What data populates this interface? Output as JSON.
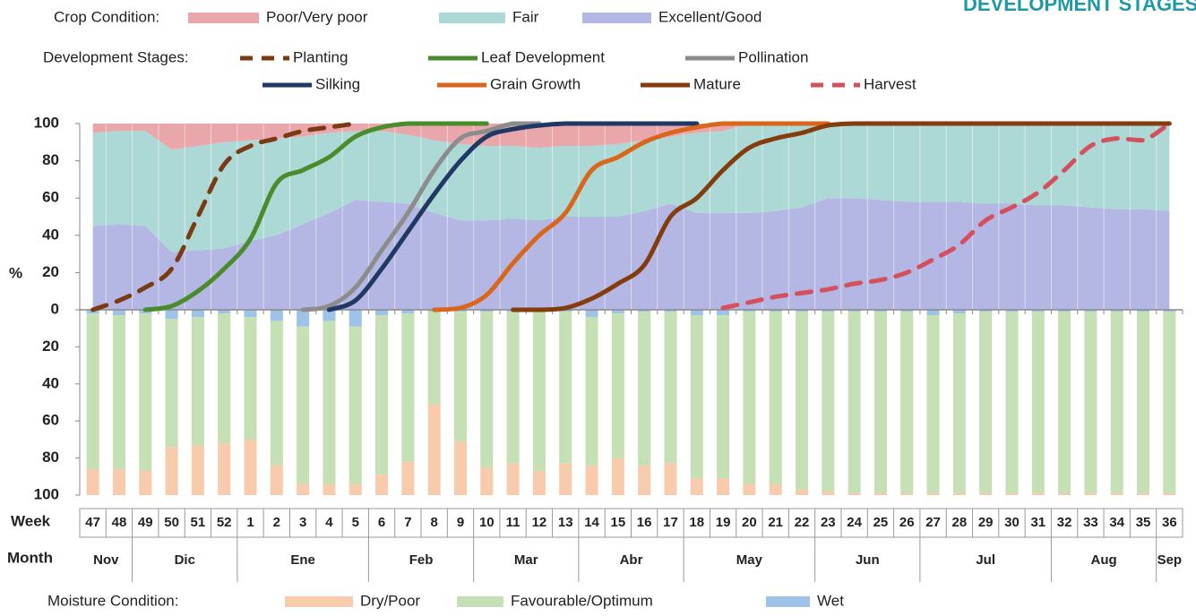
{
  "chart_data": {
    "type": "combo",
    "title": "DEVELOPMENT STAGES",
    "crop_legend_title": "Crop Condition:",
    "stage_legend_title": "Development Stages:",
    "moisture_legend_title": "Moisture Condition:",
    "y_label": "%",
    "week_label": "Week",
    "month_label": "Month",
    "categories": [
      "47",
      "48",
      "49",
      "50",
      "51",
      "52",
      "1",
      "2",
      "3",
      "4",
      "5",
      "6",
      "7",
      "8",
      "9",
      "10",
      "11",
      "12",
      "13",
      "14",
      "15",
      "16",
      "17",
      "18",
      "19",
      "20",
      "21",
      "22",
      "23",
      "24",
      "25",
      "26",
      "27",
      "28",
      "29",
      "30",
      "31",
      "32",
      "33",
      "34",
      "35",
      "36"
    ],
    "months": [
      {
        "name": "Nov",
        "span": 2
      },
      {
        "name": "Dic",
        "span": 4
      },
      {
        "name": "Ene",
        "span": 5
      },
      {
        "name": "Feb",
        "span": 4
      },
      {
        "name": "Mar",
        "span": 4
      },
      {
        "name": "Abr",
        "span": 4
      },
      {
        "name": "May",
        "span": 5
      },
      {
        "name": "Jun",
        "span": 4
      },
      {
        "name": "Jul",
        "span": 5
      },
      {
        "name": "Aug",
        "span": 4
      },
      {
        "name": "Sep",
        "span": 1
      }
    ],
    "ylim": [
      0,
      100
    ],
    "yticks": [
      0,
      20,
      40,
      60,
      80,
      100
    ],
    "moisture_ylim": [
      0,
      100
    ],
    "moisture_yticks": [
      0,
      20,
      40,
      60,
      80,
      100
    ],
    "crop_series": [
      {
        "name": "Excellent/Good",
        "color": "#b4b7e3",
        "values": [
          45,
          46,
          45,
          31,
          32,
          33,
          37,
          40,
          46,
          52,
          59,
          58,
          57,
          52,
          48,
          48,
          49,
          48,
          50,
          50,
          50,
          53,
          57,
          52,
          52,
          52,
          53,
          55,
          60,
          60,
          59,
          58,
          58,
          58,
          57,
          57,
          56,
          56,
          55,
          54,
          54,
          53
        ]
      },
      {
        "name": "Fair",
        "color": "#acd9d6",
        "values": [
          50,
          50,
          51,
          55,
          56,
          57,
          54,
          52,
          47,
          43,
          37,
          38,
          37,
          39,
          41,
          40,
          39,
          39,
          38,
          38,
          39,
          38,
          36,
          43,
          44,
          48,
          47,
          45,
          40,
          40,
          41,
          42,
          42,
          42,
          43,
          43,
          44,
          44,
          45,
          46,
          46,
          47
        ]
      },
      {
        "name": "Poor/Very poor",
        "color": "#e9a7ab",
        "values": [
          5,
          4,
          4,
          14,
          12,
          10,
          9,
          8,
          7,
          5,
          4,
          4,
          6,
          9,
          11,
          12,
          12,
          13,
          12,
          12,
          11,
          9,
          7,
          5,
          4,
          0,
          0,
          0,
          0,
          0,
          0,
          0,
          0,
          0,
          0,
          0,
          0,
          0,
          0,
          0,
          0,
          0
        ]
      }
    ],
    "stage_series": [
      {
        "name": "Planting",
        "color": "#7b3a12",
        "dashed": true,
        "values": [
          0,
          5,
          12,
          22,
          50,
          78,
          88,
          92,
          96,
          98,
          100,
          null,
          null,
          null,
          null,
          null,
          null,
          null,
          null,
          null,
          null,
          null,
          null,
          null,
          null,
          null,
          null,
          null,
          null,
          null,
          null,
          null,
          null,
          null,
          null,
          null,
          null,
          null,
          null,
          null,
          null,
          null
        ]
      },
      {
        "name": "Leaf Development",
        "color": "#4a8b2c",
        "values": [
          null,
          null,
          0,
          2,
          10,
          22,
          38,
          68,
          75,
          82,
          93,
          98,
          100,
          100,
          100,
          100,
          null,
          null,
          null,
          null,
          null,
          null,
          null,
          null,
          null,
          null,
          null,
          null,
          null,
          null,
          null,
          null,
          null,
          null,
          null,
          null,
          null,
          null,
          null,
          null,
          null,
          null
        ]
      },
      {
        "name": "Pollination",
        "color": "#8c8c8c",
        "values": [
          null,
          null,
          null,
          null,
          null,
          null,
          null,
          null,
          0,
          2,
          12,
          32,
          52,
          75,
          92,
          96,
          100,
          100,
          null,
          null,
          null,
          null,
          null,
          null,
          null,
          null,
          null,
          null,
          null,
          null,
          null,
          null,
          null,
          null,
          null,
          null,
          null,
          null,
          null,
          null,
          null,
          null
        ]
      },
      {
        "name": "Silking",
        "color": "#1f3864",
        "values": [
          null,
          null,
          null,
          null,
          null,
          null,
          null,
          null,
          null,
          0,
          5,
          22,
          42,
          62,
          80,
          93,
          97,
          99,
          100,
          100,
          100,
          100,
          100,
          100,
          null,
          null,
          null,
          null,
          null,
          null,
          null,
          null,
          null,
          null,
          null,
          null,
          null,
          null,
          null,
          null,
          null,
          null
        ]
      },
      {
        "name": "Grain Growth",
        "color": "#d9661b",
        "values": [
          null,
          null,
          null,
          null,
          null,
          null,
          null,
          null,
          null,
          null,
          null,
          null,
          null,
          0,
          1,
          8,
          25,
          40,
          52,
          75,
          82,
          90,
          95,
          98,
          100,
          100,
          100,
          100,
          100,
          null,
          null,
          null,
          null,
          null,
          null,
          null,
          null,
          null,
          null,
          null,
          null,
          null
        ]
      },
      {
        "name": "Mature",
        "color": "#843c0c",
        "values": [
          null,
          null,
          null,
          null,
          null,
          null,
          null,
          null,
          null,
          null,
          null,
          null,
          null,
          null,
          null,
          null,
          0,
          0,
          1,
          6,
          14,
          24,
          50,
          60,
          75,
          87,
          92,
          95,
          99,
          100,
          100,
          100,
          100,
          100,
          100,
          100,
          100,
          100,
          100,
          100,
          100,
          100
        ]
      },
      {
        "name": "Harvest",
        "color": "#d4505e",
        "dashed": true,
        "values": [
          null,
          null,
          null,
          null,
          null,
          null,
          null,
          null,
          null,
          null,
          null,
          null,
          null,
          null,
          null,
          null,
          null,
          null,
          null,
          null,
          null,
          null,
          null,
          null,
          1,
          4,
          7,
          9,
          11,
          14,
          16,
          20,
          27,
          35,
          48,
          55,
          63,
          75,
          88,
          92,
          91,
          100
        ]
      }
    ],
    "moisture_series": [
      {
        "name": "Wet",
        "color": "#9dc3e6",
        "values": [
          2,
          3,
          2,
          5,
          4,
          2,
          4,
          6,
          9,
          6,
          9,
          3,
          2,
          1,
          1,
          1,
          1,
          1,
          1,
          4,
          2,
          1,
          1,
          3,
          3,
          1,
          1,
          1,
          1,
          1,
          1,
          1,
          3,
          2,
          1,
          1,
          1,
          1,
          1,
          1,
          1,
          1
        ]
      },
      {
        "name": "Favourable/Optimum",
        "color": "#c5e0b4",
        "values": [
          84,
          83,
          85,
          69,
          69,
          70,
          66,
          78,
          85,
          88,
          85,
          86,
          80,
          50,
          70,
          84,
          82,
          86,
          82,
          80,
          78,
          83,
          82,
          88,
          88,
          93,
          93,
          96,
          97,
          98,
          98,
          98,
          96,
          97,
          98,
          98,
          98,
          98,
          98,
          98,
          98,
          98
        ]
      },
      {
        "name": "Dry/Poor",
        "color": "#f8cbad",
        "values": [
          14,
          14,
          13,
          26,
          27,
          28,
          30,
          16,
          6,
          6,
          6,
          11,
          18,
          49,
          29,
          15,
          17,
          13,
          17,
          16,
          20,
          16,
          17,
          9,
          9,
          6,
          6,
          3,
          2,
          1,
          1,
          1,
          1,
          1,
          1,
          1,
          1,
          1,
          1,
          1,
          1,
          1
        ]
      }
    ]
  }
}
